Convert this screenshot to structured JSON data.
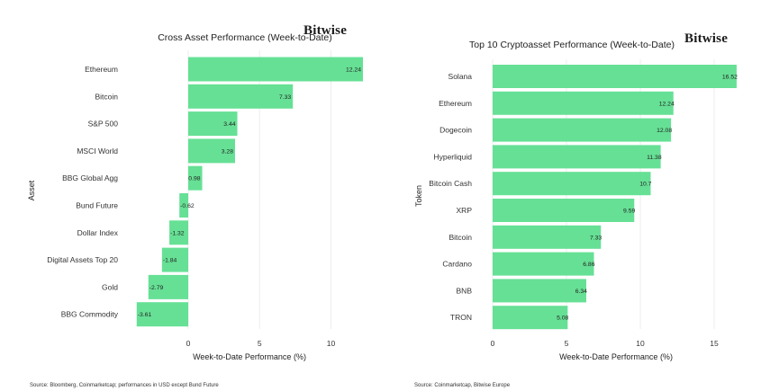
{
  "brand": {
    "logo_text": "Bitwise"
  },
  "chart_data": [
    {
      "type": "bar",
      "orientation": "horizontal",
      "title": "Cross Asset Performance (Week-to-Date)",
      "xlabel": "Week-to-Date Performance (%)",
      "ylabel": "Asset",
      "categories": [
        "Ethereum",
        "Bitcoin",
        "S&P 500",
        "MSCI World",
        "BBG Global Agg",
        "Bund Future",
        "Dollar Index",
        "Digital Assets Top 20",
        "Gold",
        "BBG Commodity"
      ],
      "values": [
        12.24,
        7.33,
        3.44,
        3.28,
        0.98,
        -0.62,
        -1.32,
        -1.84,
        -2.79,
        -3.61
      ],
      "value_labels": [
        "12.24",
        "7.33",
        "3.44",
        "3.28",
        "0.98",
        "-0.62",
        "-1.32",
        "-1.84",
        "-2.79",
        "-3.61"
      ],
      "xticks": [
        0,
        5,
        10
      ],
      "xtick_labels": [
        "0",
        "5",
        "10"
      ],
      "xlim": [
        -3.61,
        12.24
      ],
      "grid": "vertical",
      "bar_color": "#66e095",
      "source": "Source: Bloomberg, Coinmarketcap; performances in USD except Bund Future"
    },
    {
      "type": "bar",
      "orientation": "horizontal",
      "title": "Top 10 Cryptoasset Performance (Week-to-Date)",
      "xlabel": "Week-to-Date Performance (%)",
      "ylabel": "Token",
      "categories": [
        "Solana",
        "Ethereum",
        "Dogecoin",
        "Hyperliquid",
        "Bitcoin Cash",
        "XRP",
        "Bitcoin",
        "Cardano",
        "BNB",
        "TRON"
      ],
      "values": [
        16.52,
        12.24,
        12.08,
        11.38,
        10.7,
        9.59,
        7.33,
        6.86,
        6.34,
        5.08
      ],
      "value_labels": [
        "16.52",
        "12.24",
        "12.08",
        "11.38",
        "10.7",
        "9.59",
        "7.33",
        "6.86",
        "6.34",
        "5.08"
      ],
      "xticks": [
        0,
        5,
        10,
        15
      ],
      "xtick_labels": [
        "0",
        "5",
        "10",
        "15"
      ],
      "xlim": [
        0,
        16.52
      ],
      "grid": "vertical",
      "bar_color": "#66e095",
      "source": "Source: Coinmarketcap, Bitwise Europe"
    }
  ]
}
